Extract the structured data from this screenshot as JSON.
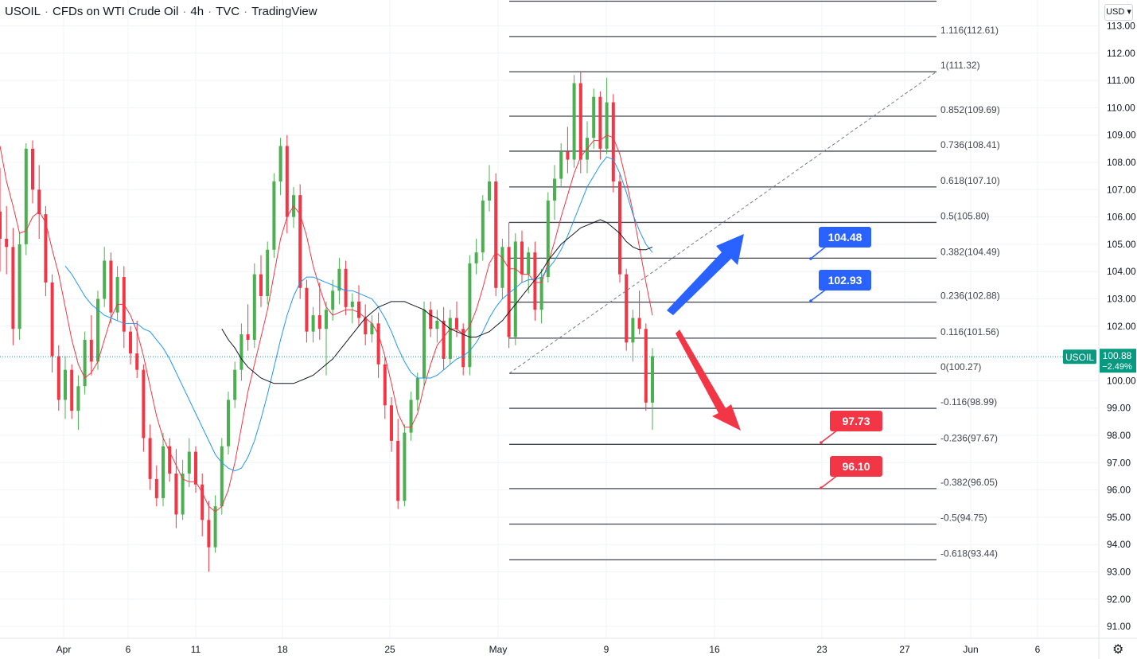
{
  "header": {
    "symbol": "USOIL",
    "description": "CFDs on WTI Crude Oil",
    "interval": "4h",
    "source": "TVC",
    "platform": "TradingView"
  },
  "currency_button": "USD",
  "settings_icon": "gear-icon",
  "chart_data": {
    "type": "candlestick",
    "title": "USOIL · CFDs on WTI Crude Oil · 4h · TVC",
    "y_axis": {
      "ticks": [
        113.0,
        112.0,
        111.0,
        110.0,
        109.0,
        108.0,
        107.0,
        106.0,
        105.0,
        104.0,
        103.0,
        102.0,
        101.0,
        100.0,
        99.0,
        98.0,
        97.0,
        96.0,
        95.0,
        94.0,
        93.0,
        92.0,
        91.0
      ],
      "ylim": [
        90.5,
        113.8
      ]
    },
    "x_axis": {
      "ticks": [
        "Apr",
        "6",
        "11",
        "18",
        "25",
        "May",
        "9",
        "16",
        "23",
        "27",
        "Jun",
        "6"
      ]
    },
    "price_label": {
      "symbol": "USOIL",
      "price": "100.88",
      "change": "−2.49%",
      "value": 100.88
    },
    "fibonacci": [
      {
        "ratio": "1.116",
        "price": "112.61",
        "value": 112.61
      },
      {
        "ratio": "1",
        "price": "111.32",
        "value": 111.32
      },
      {
        "ratio": "0.852",
        "price": "109.69",
        "value": 109.69
      },
      {
        "ratio": "0.736",
        "price": "108.41",
        "value": 108.41
      },
      {
        "ratio": "0.618",
        "price": "107.10",
        "value": 107.1
      },
      {
        "ratio": "0.5",
        "price": "105.80",
        "value": 105.8
      },
      {
        "ratio": "0.382",
        "price": "104.49",
        "value": 104.49
      },
      {
        "ratio": "0.236",
        "price": "102.88",
        "value": 102.88
      },
      {
        "ratio": "0.116",
        "price": "101.56",
        "value": 101.56
      },
      {
        "ratio": "0",
        "price": "100.27",
        "value": 100.27
      },
      {
        "ratio": "-0.116",
        "price": "98.99",
        "value": 98.99
      },
      {
        "ratio": "-0.236",
        "price": "97.67",
        "value": 97.67
      },
      {
        "ratio": "-0.382",
        "price": "96.05",
        "value": 96.05
      },
      {
        "ratio": "-0.5",
        "price": "94.75",
        "value": 94.75
      },
      {
        "ratio": "-0.618",
        "price": "93.44",
        "value": 93.44
      }
    ],
    "target_labels": [
      {
        "text": "104.48",
        "value": 104.48,
        "color": "#2962ff"
      },
      {
        "text": "102.93",
        "value": 102.93,
        "color": "#2962ff"
      },
      {
        "text": "97.73",
        "value": 97.73,
        "color": "#f23645"
      },
      {
        "text": "96.10",
        "value": 96.1,
        "color": "#f23645"
      }
    ],
    "candles": [
      [
        106.2,
        107.8,
        104.0,
        105.2
      ],
      [
        105.2,
        106.4,
        103.9,
        104.9
      ],
      [
        104.9,
        105.6,
        101.3,
        101.9
      ],
      [
        101.9,
        105.4,
        101.5,
        105.0
      ],
      [
        105.0,
        108.7,
        104.6,
        108.5
      ],
      [
        108.5,
        108.8,
        106.5,
        107.0
      ],
      [
        107.0,
        107.9,
        105.2,
        106.1
      ],
      [
        106.1,
        106.4,
        103.1,
        103.6
      ],
      [
        103.6,
        103.9,
        100.3,
        100.9
      ],
      [
        100.9,
        101.3,
        98.9,
        99.3
      ],
      [
        99.3,
        100.9,
        98.6,
        100.4
      ],
      [
        100.4,
        100.6,
        98.6,
        98.9
      ],
      [
        98.9,
        100.2,
        98.2,
        99.8
      ],
      [
        99.8,
        101.8,
        99.5,
        101.5
      ],
      [
        101.5,
        102.4,
        100.2,
        100.7
      ],
      [
        100.7,
        103.3,
        100.4,
        103.0
      ],
      [
        103.0,
        104.9,
        102.7,
        104.4
      ],
      [
        104.4,
        104.7,
        102.1,
        102.5
      ],
      [
        102.5,
        104.2,
        102.2,
        103.8
      ],
      [
        103.8,
        104.2,
        101.2,
        101.8
      ],
      [
        101.8,
        102.0,
        100.6,
        101.0
      ],
      [
        101.0,
        102.2,
        100.1,
        100.4
      ],
      [
        100.4,
        100.6,
        97.4,
        97.9
      ],
      [
        97.9,
        98.4,
        96.0,
        96.4
      ],
      [
        96.4,
        96.9,
        95.4,
        95.7
      ],
      [
        95.7,
        98.1,
        95.4,
        97.6
      ],
      [
        97.6,
        97.9,
        96.3,
        96.6
      ],
      [
        96.6,
        97.5,
        94.6,
        95.1
      ],
      [
        95.1,
        97.1,
        94.9,
        96.6
      ],
      [
        96.6,
        97.9,
        96.1,
        97.4
      ],
      [
        97.4,
        97.6,
        95.9,
        96.2
      ],
      [
        96.2,
        96.6,
        94.3,
        94.9
      ],
      [
        94.9,
        95.6,
        93.0,
        93.9
      ],
      [
        93.9,
        95.8,
        93.7,
        95.4
      ],
      [
        95.4,
        97.9,
        95.1,
        97.6
      ],
      [
        97.6,
        99.6,
        97.3,
        99.3
      ],
      [
        99.3,
        100.7,
        99.0,
        100.4
      ],
      [
        100.4,
        102.1,
        100.0,
        101.7
      ],
      [
        101.7,
        102.8,
        101.1,
        101.5
      ],
      [
        101.5,
        104.3,
        101.2,
        103.9
      ],
      [
        103.9,
        104.6,
        102.7,
        103.1
      ],
      [
        103.1,
        105.1,
        102.8,
        104.8
      ],
      [
        104.8,
        107.6,
        104.5,
        107.3
      ],
      [
        107.3,
        108.9,
        106.8,
        108.6
      ],
      [
        108.6,
        109.0,
        105.4,
        106.0
      ],
      [
        106.0,
        107.1,
        105.6,
        106.8
      ],
      [
        106.8,
        107.2,
        103.0,
        103.4
      ],
      [
        103.4,
        103.7,
        101.4,
        101.8
      ],
      [
        101.8,
        102.7,
        101.4,
        102.4
      ],
      [
        102.4,
        103.6,
        101.5,
        101.9
      ],
      [
        101.9,
        102.9,
        100.2,
        102.6
      ],
      [
        102.6,
        103.7,
        102.2,
        103.3
      ],
      [
        103.3,
        104.5,
        102.8,
        104.1
      ],
      [
        104.1,
        104.4,
        102.4,
        102.7
      ],
      [
        102.7,
        103.2,
        102.1,
        102.9
      ],
      [
        102.9,
        103.5,
        102.0,
        102.3
      ],
      [
        102.3,
        102.8,
        101.3,
        101.7
      ],
      [
        101.7,
        102.4,
        101.4,
        102.1
      ],
      [
        102.1,
        102.5,
        100.1,
        100.6
      ],
      [
        100.6,
        100.9,
        98.6,
        99.1
      ],
      [
        99.1,
        99.4,
        97.4,
        97.8
      ],
      [
        97.8,
        98.6,
        95.3,
        95.6
      ],
      [
        95.6,
        98.4,
        95.4,
        98.1
      ],
      [
        98.1,
        99.6,
        97.8,
        99.3
      ],
      [
        99.3,
        100.3,
        98.9,
        100.1
      ],
      [
        100.1,
        102.9,
        99.8,
        102.6
      ],
      [
        102.6,
        102.9,
        101.6,
        101.9
      ],
      [
        101.9,
        102.6,
        101.4,
        102.2
      ],
      [
        102.2,
        102.7,
        100.4,
        100.8
      ],
      [
        100.8,
        102.6,
        100.6,
        102.3
      ],
      [
        102.3,
        102.9,
        101.6,
        101.9
      ],
      [
        101.9,
        102.1,
        100.2,
        100.5
      ],
      [
        100.5,
        104.6,
        100.2,
        104.3
      ],
      [
        104.3,
        105.2,
        103.9,
        104.7
      ],
      [
        104.7,
        106.8,
        104.4,
        106.6
      ],
      [
        106.6,
        107.9,
        106.2,
        107.3
      ],
      [
        107.3,
        107.6,
        103.1,
        103.4
      ],
      [
        103.4,
        105.2,
        103.0,
        104.9
      ],
      [
        104.9,
        105.8,
        101.2,
        101.6
      ],
      [
        101.6,
        105.4,
        101.3,
        105.1
      ],
      [
        105.1,
        105.5,
        103.6,
        103.9
      ],
      [
        103.9,
        104.9,
        103.2,
        104.7
      ],
      [
        104.7,
        105.1,
        102.2,
        102.6
      ],
      [
        102.6,
        104.1,
        102.1,
        103.8
      ],
      [
        103.8,
        106.9,
        103.6,
        106.6
      ],
      [
        106.6,
        107.9,
        105.9,
        107.4
      ],
      [
        107.4,
        108.7,
        107.1,
        108.4
      ],
      [
        108.4,
        109.3,
        107.6,
        108.1
      ],
      [
        108.1,
        111.2,
        107.8,
        110.9
      ],
      [
        110.9,
        111.3,
        107.6,
        108.1
      ],
      [
        108.1,
        109.5,
        107.6,
        108.9
      ],
      [
        108.9,
        110.7,
        108.5,
        110.4
      ],
      [
        110.4,
        110.6,
        108.1,
        108.5
      ],
      [
        108.5,
        111.1,
        108.3,
        110.2
      ],
      [
        110.2,
        110.5,
        106.9,
        107.3
      ],
      [
        107.3,
        107.6,
        103.6,
        103.9
      ],
      [
        103.9,
        104.1,
        101.1,
        101.4
      ],
      [
        101.4,
        102.6,
        100.7,
        102.3
      ],
      [
        102.3,
        103.3,
        101.7,
        101.9
      ],
      [
        101.9,
        102.1,
        98.9,
        99.2
      ],
      [
        99.2,
        101.2,
        98.2,
        100.9
      ]
    ],
    "moving_averages": [
      {
        "color": "#f23645",
        "values": [
          108.6,
          107.3,
          106.4,
          105.4,
          105.5,
          106.0,
          106.2,
          105.8,
          104.8,
          103.9,
          102.7,
          101.5,
          100.6,
          100.1,
          100.3,
          100.7,
          101.5,
          102.3,
          102.8,
          102.8,
          102.4,
          101.8,
          100.9,
          99.8,
          98.7,
          97.9,
          97.4,
          96.9,
          96.4,
          96.3,
          96.3,
          95.9,
          95.4,
          95.2,
          95.4,
          96.0,
          97.0,
          98.3,
          99.6,
          100.6,
          101.6,
          102.6,
          103.9,
          105.2,
          106.0,
          106.4,
          106.1,
          105.3,
          104.2,
          103.4,
          102.7,
          102.4,
          102.5,
          102.6,
          102.6,
          102.5,
          102.3,
          102.1,
          101.7,
          100.9,
          99.9,
          98.8,
          98.3,
          98.3,
          98.8,
          99.8,
          100.6,
          101.3,
          101.6,
          101.9,
          101.9,
          101.7,
          102.0,
          102.6,
          103.4,
          104.3,
          104.7,
          104.5,
          104.1,
          104.1,
          103.9,
          103.9,
          103.6,
          103.6,
          104.3,
          105.1,
          106.0,
          106.8,
          107.6,
          108.2,
          108.5,
          108.8,
          108.8,
          109.0,
          108.9,
          108.3,
          107.3,
          106.2,
          104.9,
          103.6,
          102.4
        ]
      },
      {
        "color": "#2196f3",
        "values": [
          null,
          null,
          null,
          null,
          null,
          null,
          null,
          null,
          null,
          null,
          104.2,
          103.9,
          103.5,
          103.1,
          102.8,
          102.6,
          102.4,
          102.3,
          102.2,
          102.1,
          102.1,
          102.1,
          101.9,
          101.8,
          101.5,
          101.2,
          100.8,
          100.3,
          99.8,
          99.3,
          98.8,
          98.3,
          97.8,
          97.3,
          97.0,
          96.8,
          96.7,
          96.8,
          97.2,
          97.8,
          98.6,
          99.5,
          100.5,
          101.5,
          102.4,
          103.1,
          103.6,
          103.8,
          103.8,
          103.7,
          103.6,
          103.5,
          103.4,
          103.3,
          103.3,
          103.2,
          103.1,
          103.0,
          102.7,
          102.3,
          101.8,
          101.2,
          100.7,
          100.3,
          100.1,
          100.1,
          100.1,
          100.2,
          100.4,
          100.6,
          100.8,
          100.9,
          101.1,
          101.4,
          101.8,
          102.3,
          102.7,
          103.0,
          103.2,
          103.4,
          103.6,
          103.7,
          103.7,
          103.8,
          104.1,
          104.4,
          104.8,
          105.3,
          105.9,
          106.5,
          107.1,
          107.5,
          107.9,
          108.2,
          108.1,
          107.6,
          106.9,
          106.1,
          105.5,
          105.0,
          104.7
        ]
      },
      {
        "color": "#131722",
        "values": [
          null,
          null,
          null,
          null,
          null,
          null,
          null,
          null,
          null,
          null,
          null,
          null,
          null,
          null,
          null,
          null,
          null,
          null,
          null,
          null,
          null,
          null,
          null,
          null,
          null,
          null,
          null,
          null,
          null,
          null,
          null,
          null,
          null,
          null,
          101.9,
          101.5,
          101.2,
          100.8,
          100.5,
          100.3,
          100.1,
          100.0,
          99.9,
          99.9,
          99.9,
          99.9,
          100.0,
          100.1,
          100.2,
          100.4,
          100.6,
          100.8,
          101.1,
          101.4,
          101.7,
          102.0,
          102.3,
          102.5,
          102.7,
          102.8,
          102.9,
          102.9,
          102.9,
          102.8,
          102.7,
          102.6,
          102.4,
          102.3,
          102.1,
          101.9,
          101.8,
          101.7,
          101.6,
          101.6,
          101.7,
          101.8,
          102.0,
          102.2,
          102.5,
          102.8,
          103.1,
          103.4,
          103.7,
          104.0,
          104.4,
          104.7,
          105.0,
          105.2,
          105.4,
          105.6,
          105.7,
          105.8,
          105.9,
          105.8,
          105.6,
          105.4,
          105.1,
          104.9,
          104.8,
          104.8,
          104.9
        ]
      }
    ]
  }
}
